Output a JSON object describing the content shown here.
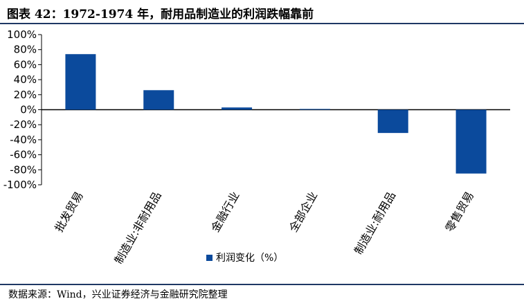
{
  "header": {
    "title": "图表 42：1972-1974 年，耐用品制造业的利润跌幅靠前"
  },
  "footer": {
    "source": "数据来源：Wind，兴业证券经济与金融研究院整理"
  },
  "colors": {
    "bar": "#0b4a9c",
    "axis": "#000000",
    "rule": "#1f3864"
  },
  "chart_data": {
    "type": "bar",
    "categories": [
      "批发贸易",
      "制造业:非耐用品",
      "金融行业",
      "全部企业",
      "制造业:耐用品",
      "零售贸易"
    ],
    "series": [
      {
        "name": "利润变化（%）",
        "values": [
          74,
          26,
          3,
          1,
          -31,
          -85
        ]
      }
    ],
    "ylim": [
      -100,
      100
    ],
    "yticks": [
      100,
      80,
      60,
      40,
      20,
      0,
      -20,
      -40,
      -60,
      -80,
      -100
    ],
    "ytick_labels": [
      "100%",
      "80%",
      "60%",
      "40%",
      "20%",
      "0%",
      "-20%",
      "-40%",
      "-60%",
      "-80%",
      "-100%"
    ],
    "grid": false,
    "legend": "bottom-center"
  }
}
